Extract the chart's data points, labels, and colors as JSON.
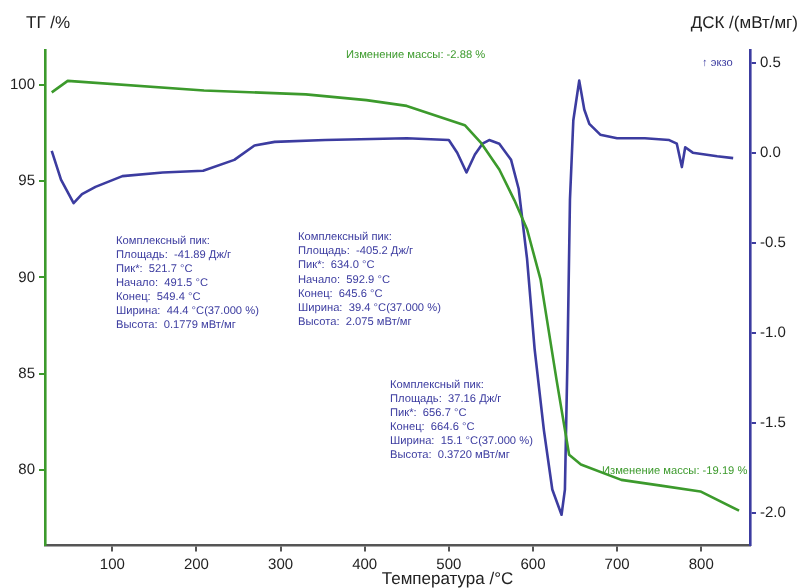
{
  "chart_data": {
    "type": "line",
    "xlabel": "Температура /°C",
    "ylabel": "ТГ /%",
    "y2label": "ДСК /(мВт/мг)",
    "xlim": [
      20,
      858
    ],
    "xticks": [
      100,
      200,
      300,
      400,
      500,
      600,
      700,
      800
    ],
    "ylim": [
      76.1,
      101.8
    ],
    "yticks": [
      80,
      85,
      90,
      95,
      100
    ],
    "y2lim": [
      -2.18,
      0.57
    ],
    "y2ticks": [
      {
        "value": -2,
        "label": "-2.0"
      },
      {
        "value": -1.5,
        "label": "-1.5"
      },
      {
        "value": -1,
        "label": "-1.0"
      },
      {
        "value": -0.5,
        "label": "-0.5"
      },
      {
        "value": 0,
        "label": "0.0"
      },
      {
        "value": 0.5,
        "label": "0.5"
      }
    ],
    "grid": false,
    "legend": false,
    "marker": "none",
    "series": [
      {
        "color": "#3c9a2c",
        "axis": "y",
        "x": [
          28,
          47,
          209,
          330,
          402,
          450,
          519,
          538,
          560,
          578,
          593,
          609,
          628,
          643,
          657,
          705,
          752,
          799,
          845
        ],
        "values": [
          99.6,
          100.2,
          99.7,
          99.5,
          99.2,
          98.9,
          97.9,
          97.0,
          95.6,
          94.0,
          92.5,
          89.9,
          84.7,
          80.8,
          80.3,
          79.5,
          79.2,
          78.9,
          77.9
        ]
      },
      {
        "color": "#3c3ca0",
        "axis": "y2",
        "x": [
          28,
          39,
          54,
          64,
          80,
          112,
          160,
          208,
          245,
          269,
          293,
          353,
          450,
          500,
          510,
          521,
          531,
          540,
          548,
          560,
          574,
          583,
          593,
          602,
          613,
          623,
          634,
          638,
          641,
          644,
          648,
          655,
          661,
          667,
          680,
          700,
          733,
          762,
          771,
          777,
          781,
          790,
          819,
          838
        ],
        "values": [
          0.01,
          -0.15,
          -0.28,
          -0.23,
          -0.19,
          -0.13,
          -0.11,
          -0.1,
          -0.04,
          0.04,
          0.06,
          0.07,
          0.08,
          0.07,
          0,
          -0.11,
          -0.01,
          0.05,
          0.07,
          0.05,
          -0.04,
          -0.2,
          -0.59,
          -1.09,
          -1.54,
          -1.87,
          -2.01,
          -1.87,
          -1.15,
          -0.26,
          0.18,
          0.4,
          0.24,
          0.16,
          0.1,
          0.08,
          0.08,
          0.07,
          0.05,
          -0.08,
          0.03,
          0,
          -0.02,
          -0.03
        ]
      }
    ],
    "annotations": [
      "↑ экзо",
      "Изменение массы: -2.88 %",
      "Комплексный пик:\nПлощадь:  -41.89 Дж/г\nПик*:  521.7 °C\nНачало:  491.5 °C\nКонец:  549.4 °C\nШирина:  44.4 °C(37.000 %)\nВысота:  0.1779 мВт/мг",
      "Комплексный пик:\nПлощадь:  -405.2 Дж/г\nПик*:  634.0 °C\nНачало:  592.9 °C\nКонец:  645.6 °C\nШирина:  39.4 °C(37.000 %)\nВысота:  2.075 мВт/мг",
      "Комплексный пик:\nПлощадь:  37.16 Дж/г\nПик*:  656.7 °C\nКонец:  664.6 °C\nШирина:  15.1 °C(37.000 %)\nВысота:  0.3720 мВт/мг",
      "Изменение массы: -19.19 %"
    ]
  }
}
